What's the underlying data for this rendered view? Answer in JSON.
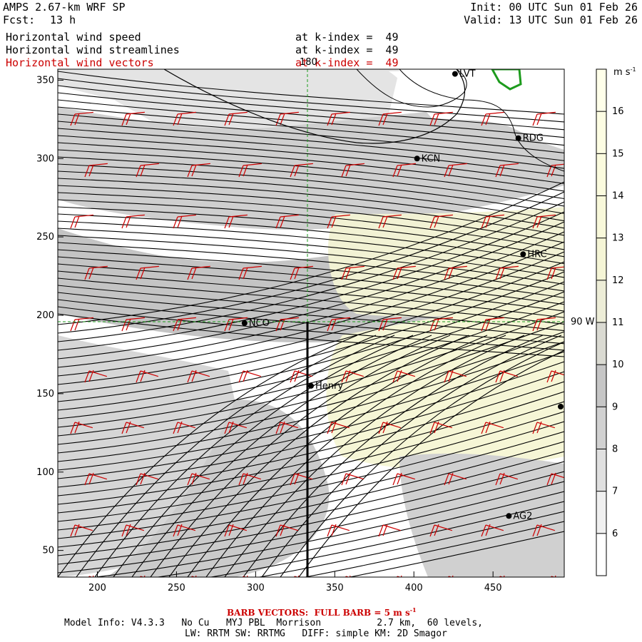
{
  "header": {
    "model": "AMPS 2.67-km WRF SP",
    "fcst_label": "Fcst:",
    "fcst_value": "13 h",
    "init": "Init: 00 UTC Sun 01 Feb 26",
    "valid": "Valid: 13 UTC Sun 01 Feb 26"
  },
  "layers": [
    {
      "label": "Horizontal wind speed",
      "level": "at k-index =  49",
      "color": "#000000"
    },
    {
      "label": "Horizontal wind streamlines",
      "level": "at k-index =  49",
      "color": "#000000"
    },
    {
      "label": "Horizontal wind vectors",
      "level": "at k-index =  49",
      "color": "#cc0000"
    }
  ],
  "map": {
    "x_ticks": [
      200,
      250,
      300,
      350,
      400,
      450
    ],
    "y_ticks": [
      50,
      100,
      150,
      200,
      250,
      300,
      350
    ],
    "x_range": [
      175,
      495
    ],
    "y_range": [
      33,
      357
    ],
    "meridian_label": "180",
    "parallel_label": "90 W",
    "stations": [
      {
        "name": "LVT",
        "x": 426,
        "y": 354
      },
      {
        "name": "RDG",
        "x": 466,
        "y": 313
      },
      {
        "name": "KCN",
        "x": 402,
        "y": 300
      },
      {
        "name": "HRC",
        "x": 469,
        "y": 239
      },
      {
        "name": "NCO",
        "x": 293,
        "y": 195
      },
      {
        "name": "Henry",
        "x": 335,
        "y": 155
      },
      {
        "name": "AG2",
        "x": 460,
        "y": 72
      }
    ]
  },
  "colorbar": {
    "unit": "m s",
    "unit_exp": "-1",
    "levels": [
      6,
      7,
      8,
      9,
      10,
      11,
      12,
      13,
      14,
      15,
      16
    ],
    "colors": [
      "#ffffff",
      "#f0f0f0",
      "#e0e0e0",
      "#d1d1d1",
      "#c6c6c6",
      "#dadad2",
      "#ededd7",
      "#f5f5d6",
      "#f8f8da",
      "#fbfbde",
      "#fdfde3",
      "#ffffea"
    ]
  },
  "footer": {
    "barb_note": "BARB VECTORS:  FULL BARB = 5 m s",
    "barb_exp": "-1",
    "model_info": "Model Info: V4.3.3   No Cu   MYJ PBL  Morrison          2.7 km,  60 levels,",
    "physics": "LW: RRTM SW: RRTMG   DIFF: simple KM: 2D Smagor"
  }
}
